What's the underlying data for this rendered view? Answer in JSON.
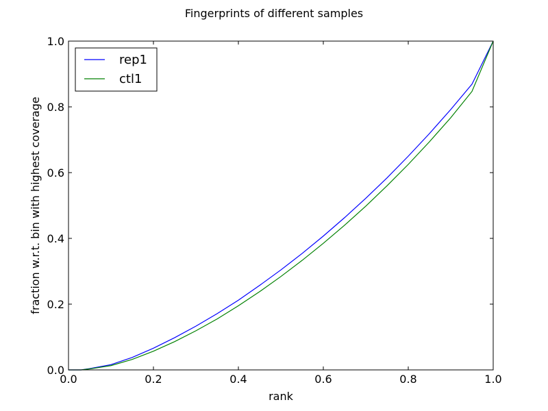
{
  "chart_data": {
    "type": "line",
    "title": "Fingerprints of different samples",
    "xlabel": "rank",
    "ylabel": "fraction w.r.t. bin with highest coverage",
    "xlim": [
      0.0,
      1.0
    ],
    "ylim": [
      0.0,
      1.0
    ],
    "x_ticks": [
      "0.0",
      "0.2",
      "0.4",
      "0.6",
      "0.8",
      "1.0"
    ],
    "y_ticks": [
      "0.0",
      "0.2",
      "0.4",
      "0.6",
      "0.8",
      "1.0"
    ],
    "grid": false,
    "legend_position": "top-left",
    "x": [
      0.0,
      0.03,
      0.05,
      0.1,
      0.15,
      0.2,
      0.25,
      0.3,
      0.35,
      0.4,
      0.45,
      0.5,
      0.55,
      0.6,
      0.65,
      0.7,
      0.75,
      0.8,
      0.85,
      0.9,
      0.95,
      1.0
    ],
    "series": [
      {
        "name": "rep1",
        "color": "#0000ff",
        "values": [
          0.0,
          0.0,
          0.004,
          0.016,
          0.038,
          0.066,
          0.098,
          0.133,
          0.171,
          0.212,
          0.257,
          0.304,
          0.354,
          0.407,
          0.463,
          0.522,
          0.584,
          0.65,
          0.719,
          0.792,
          0.869,
          1.0
        ]
      },
      {
        "name": "ctl1",
        "color": "#008000",
        "values": [
          0.0,
          0.0,
          0.003,
          0.013,
          0.032,
          0.057,
          0.086,
          0.119,
          0.155,
          0.195,
          0.238,
          0.284,
          0.333,
          0.385,
          0.44,
          0.498,
          0.56,
          0.625,
          0.694,
          0.767,
          0.847,
          1.0
        ]
      }
    ]
  }
}
